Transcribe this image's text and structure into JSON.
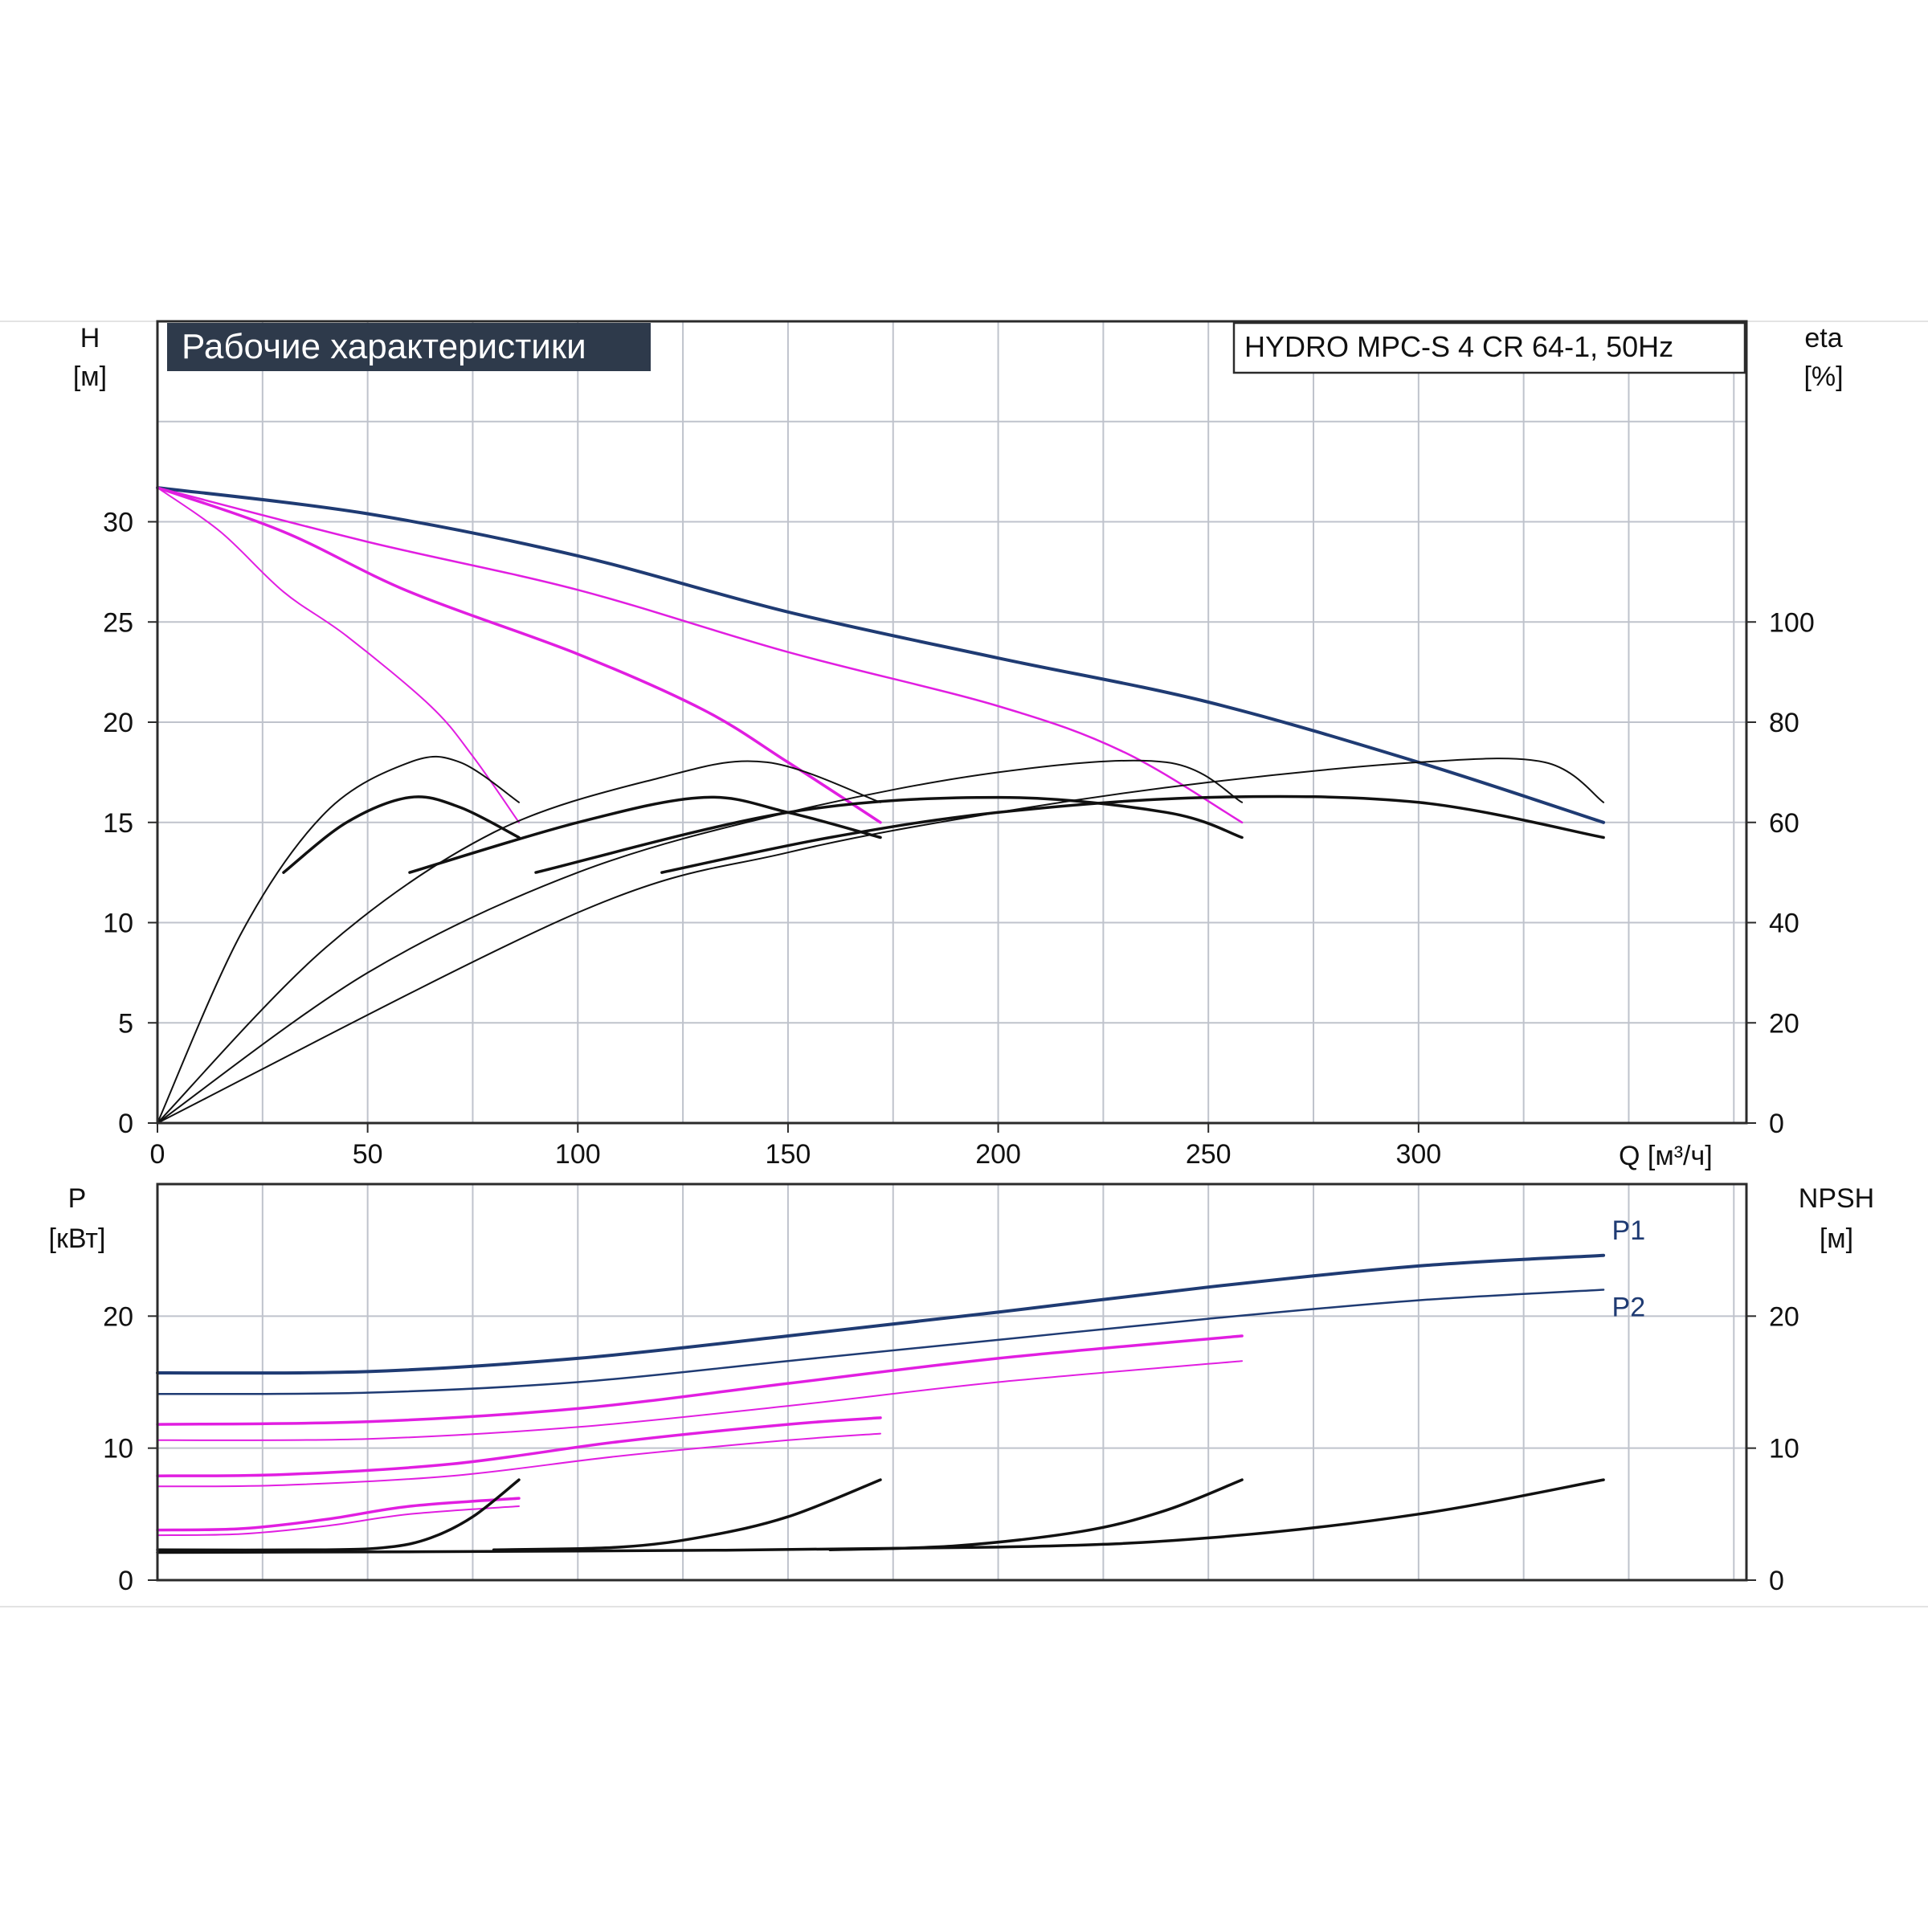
{
  "header": {
    "title": "Рабочие характеристики",
    "model": "HYDRO MPC-S 4 CR 64-1, 50Hz"
  },
  "colors": {
    "title_bg": "#2e3a4b",
    "navy": "#1f3b73",
    "magenta": "#e11ee1",
    "black": "#111111",
    "grid": "#bfc3cc"
  },
  "chart_data": [
    {
      "id": "top",
      "type": "line",
      "x_axis": {
        "label": "Q [м³/ч]",
        "min": 0,
        "max": 378,
        "ticks": [
          0,
          50,
          100,
          150,
          200,
          250,
          300
        ],
        "tick_labels": [
          "0",
          "50",
          "100",
          "150",
          "200",
          "250",
          "300"
        ]
      },
      "y_left": {
        "label_line1": "H",
        "label_line2": "[м]",
        "min": 0,
        "max": 40,
        "ticks": [
          0,
          5,
          10,
          15,
          20,
          25,
          30
        ],
        "tick_labels": [
          "0",
          "5",
          "10",
          "15",
          "20",
          "25",
          "30"
        ]
      },
      "y_right": {
        "label_line1": "eta",
        "label_line2": "[%]",
        "min": 0,
        "max": 160,
        "ticks": [
          0,
          20,
          40,
          60,
          80,
          100
        ],
        "tick_labels": [
          "0",
          "20",
          "40",
          "60",
          "80",
          "100"
        ]
      },
      "grid": true,
      "series": [
        {
          "role": "head-4pumps",
          "color": "navy",
          "width": 4,
          "axis": "left",
          "points": [
            [
              0,
              31.7
            ],
            [
              50,
              30.4
            ],
            [
              100,
              28.3
            ],
            [
              150,
              25.5
            ],
            [
              200,
              23.2
            ],
            [
              250,
              21.0
            ],
            [
              300,
              18.0
            ],
            [
              344,
              15.0
            ]
          ]
        },
        {
          "role": "head-3pumps",
          "color": "magenta",
          "width": 2.5,
          "axis": "left",
          "points": [
            [
              0,
              31.7
            ],
            [
              50,
              29.0
            ],
            [
              100,
              26.6
            ],
            [
              150,
              23.5
            ],
            [
              200,
              20.8
            ],
            [
              230,
              18.5
            ],
            [
              258,
              15.0
            ]
          ]
        },
        {
          "role": "head-2pumps",
          "color": "magenta",
          "width": 3.5,
          "axis": "left",
          "points": [
            [
              0,
              31.7
            ],
            [
              30,
              29.5
            ],
            [
              60,
              26.5
            ],
            [
              100,
              23.4
            ],
            [
              130,
              20.6
            ],
            [
              150,
              18.0
            ],
            [
              172,
              15.0
            ]
          ]
        },
        {
          "role": "head-1pump",
          "color": "magenta",
          "width": 2,
          "axis": "left",
          "points": [
            [
              0,
              31.7
            ],
            [
              15,
              29.5
            ],
            [
              30,
              26.5
            ],
            [
              45,
              24.3
            ],
            [
              65,
              20.8
            ],
            [
              75,
              18.3
            ],
            [
              86,
              15.0
            ]
          ]
        },
        {
          "role": "eta-4pumps-thin",
          "color": "black",
          "width": 2,
          "axis": "right",
          "points": [
            [
              0,
              0
            ],
            [
              100,
              42
            ],
            [
              150,
              54
            ],
            [
              200,
              62
            ],
            [
              250,
              68
            ],
            [
              300,
              72
            ],
            [
              330,
              72
            ],
            [
              344,
              64
            ]
          ]
        },
        {
          "role": "eta-4pumps-bold",
          "color": "black",
          "width": 3.5,
          "axis": "right",
          "points": [
            [
              120,
              50
            ],
            [
              160,
              57
            ],
            [
              200,
              62
            ],
            [
              250,
              65
            ],
            [
              300,
              64
            ],
            [
              344,
              57
            ]
          ]
        },
        {
          "role": "eta-3pumps-thin",
          "color": "black",
          "width": 2,
          "axis": "right",
          "points": [
            [
              0,
              0
            ],
            [
              50,
              30
            ],
            [
              100,
              50
            ],
            [
              150,
              62
            ],
            [
              200,
              70
            ],
            [
              240,
              72
            ],
            [
              258,
              64
            ]
          ]
        },
        {
          "role": "eta-3pumps-bold",
          "color": "black",
          "width": 3.5,
          "axis": "right",
          "points": [
            [
              90,
              50
            ],
            [
              150,
              62
            ],
            [
              200,
              65
            ],
            [
              240,
              62
            ],
            [
              258,
              57
            ]
          ]
        },
        {
          "role": "eta-2pumps-thin",
          "color": "black",
          "width": 2,
          "axis": "right",
          "points": [
            [
              0,
              0
            ],
            [
              40,
              35
            ],
            [
              80,
              58
            ],
            [
              120,
              69
            ],
            [
              145,
              72
            ],
            [
              172,
              64
            ]
          ]
        },
        {
          "role": "eta-2pumps-bold",
          "color": "black",
          "width": 3.5,
          "axis": "right",
          "points": [
            [
              60,
              50
            ],
            [
              100,
              60
            ],
            [
              130,
              65
            ],
            [
              150,
              62
            ],
            [
              172,
              57
            ]
          ]
        },
        {
          "role": "eta-1pump-thin",
          "color": "black",
          "width": 2,
          "axis": "right",
          "points": [
            [
              0,
              0
            ],
            [
              20,
              38
            ],
            [
              40,
              62
            ],
            [
              60,
              72
            ],
            [
              72,
              72
            ],
            [
              86,
              64
            ]
          ]
        },
        {
          "role": "eta-1pump-bold",
          "color": "black",
          "width": 3.5,
          "axis": "right",
          "points": [
            [
              30,
              50
            ],
            [
              45,
              60
            ],
            [
              60,
              65
            ],
            [
              72,
              63
            ],
            [
              86,
              57
            ]
          ]
        }
      ]
    },
    {
      "id": "bottom",
      "type": "line",
      "x_axis": {
        "min": 0,
        "max": 378,
        "ticks": [
          0,
          50,
          100,
          150,
          200,
          250,
          300
        ]
      },
      "y_left": {
        "label_line1": "P",
        "label_line2": "[кВт]",
        "min": 0,
        "max": 30,
        "ticks": [
          0,
          10,
          20
        ],
        "tick_labels": [
          "0",
          "10",
          "20"
        ]
      },
      "y_right": {
        "label_line1": "NPSH",
        "label_line2": "[м]",
        "min": 0,
        "max": 30,
        "ticks": [
          0,
          10,
          20
        ],
        "tick_labels": [
          "0",
          "10",
          "20"
        ]
      },
      "grid": true,
      "labels": [
        {
          "text": "P1",
          "x": 346,
          "y": 25.8
        },
        {
          "text": "P2",
          "x": 346,
          "y": 20.0
        }
      ],
      "series": [
        {
          "role": "P1-4pumps",
          "color": "navy",
          "width": 4,
          "points": [
            [
              0,
              15.7
            ],
            [
              50,
              15.8
            ],
            [
              100,
              16.8
            ],
            [
              150,
              18.5
            ],
            [
              200,
              20.3
            ],
            [
              250,
              22.2
            ],
            [
              300,
              23.8
            ],
            [
              344,
              24.6
            ]
          ]
        },
        {
          "role": "P2-4pumps",
          "color": "navy",
          "width": 2.5,
          "points": [
            [
              0,
              14.1
            ],
            [
              50,
              14.2
            ],
            [
              100,
              15.0
            ],
            [
              150,
              16.6
            ],
            [
              200,
              18.2
            ],
            [
              250,
              19.8
            ],
            [
              300,
              21.2
            ],
            [
              344,
              22.0
            ]
          ]
        },
        {
          "role": "P1-3pumps",
          "color": "magenta",
          "width": 3.5,
          "points": [
            [
              0,
              11.8
            ],
            [
              50,
              12.0
            ],
            [
              100,
              13.0
            ],
            [
              150,
              14.9
            ],
            [
              200,
              16.8
            ],
            [
              258,
              18.5
            ]
          ]
        },
        {
          "role": "P2-3pumps",
          "color": "magenta",
          "width": 2,
          "points": [
            [
              0,
              10.6
            ],
            [
              50,
              10.7
            ],
            [
              100,
              11.6
            ],
            [
              150,
              13.2
            ],
            [
              200,
              15.0
            ],
            [
              258,
              16.6
            ]
          ]
        },
        {
          "role": "P1-2pumps",
          "color": "magenta",
          "width": 3.5,
          "points": [
            [
              0,
              7.9
            ],
            [
              30,
              8.0
            ],
            [
              70,
              8.8
            ],
            [
              110,
              10.5
            ],
            [
              150,
              11.8
            ],
            [
              172,
              12.3
            ]
          ]
        },
        {
          "role": "P2-2pumps",
          "color": "magenta",
          "width": 2,
          "points": [
            [
              0,
              7.1
            ],
            [
              30,
              7.2
            ],
            [
              70,
              7.9
            ],
            [
              110,
              9.4
            ],
            [
              150,
              10.6
            ],
            [
              172,
              11.1
            ]
          ]
        },
        {
          "role": "P1-1pump",
          "color": "magenta",
          "width": 3.5,
          "points": [
            [
              0,
              3.8
            ],
            [
              20,
              3.9
            ],
            [
              40,
              4.6
            ],
            [
              60,
              5.6
            ],
            [
              86,
              6.2
            ]
          ]
        },
        {
          "role": "P2-1pump",
          "color": "magenta",
          "width": 2,
          "points": [
            [
              0,
              3.4
            ],
            [
              20,
              3.5
            ],
            [
              40,
              4.1
            ],
            [
              60,
              5.0
            ],
            [
              86,
              5.6
            ]
          ]
        },
        {
          "role": "NPSH-1pump",
          "color": "black",
          "width": 3.5,
          "points": [
            [
              0,
              2.3
            ],
            [
              40,
              2.3
            ],
            [
              55,
              2.5
            ],
            [
              65,
              3.2
            ],
            [
              75,
              4.8
            ],
            [
              86,
              7.6
            ]
          ]
        },
        {
          "role": "NPSH-2pumps",
          "color": "black",
          "width": 3.5,
          "points": [
            [
              80,
              2.3
            ],
            [
              110,
              2.5
            ],
            [
              130,
              3.3
            ],
            [
              150,
              4.8
            ],
            [
              172,
              7.6
            ]
          ]
        },
        {
          "role": "NPSH-3pumps",
          "color": "black",
          "width": 3.5,
          "points": [
            [
              160,
              2.3
            ],
            [
              190,
              2.6
            ],
            [
              220,
              3.7
            ],
            [
              240,
              5.3
            ],
            [
              258,
              7.6
            ]
          ]
        },
        {
          "role": "NPSH-4pumps",
          "color": "black",
          "width": 3.5,
          "points": [
            [
              0,
              2.1
            ],
            [
              100,
              2.2
            ],
            [
              200,
              2.5
            ],
            [
              250,
              3.2
            ],
            [
              300,
              5.0
            ],
            [
              344,
              7.6
            ]
          ]
        }
      ]
    }
  ]
}
